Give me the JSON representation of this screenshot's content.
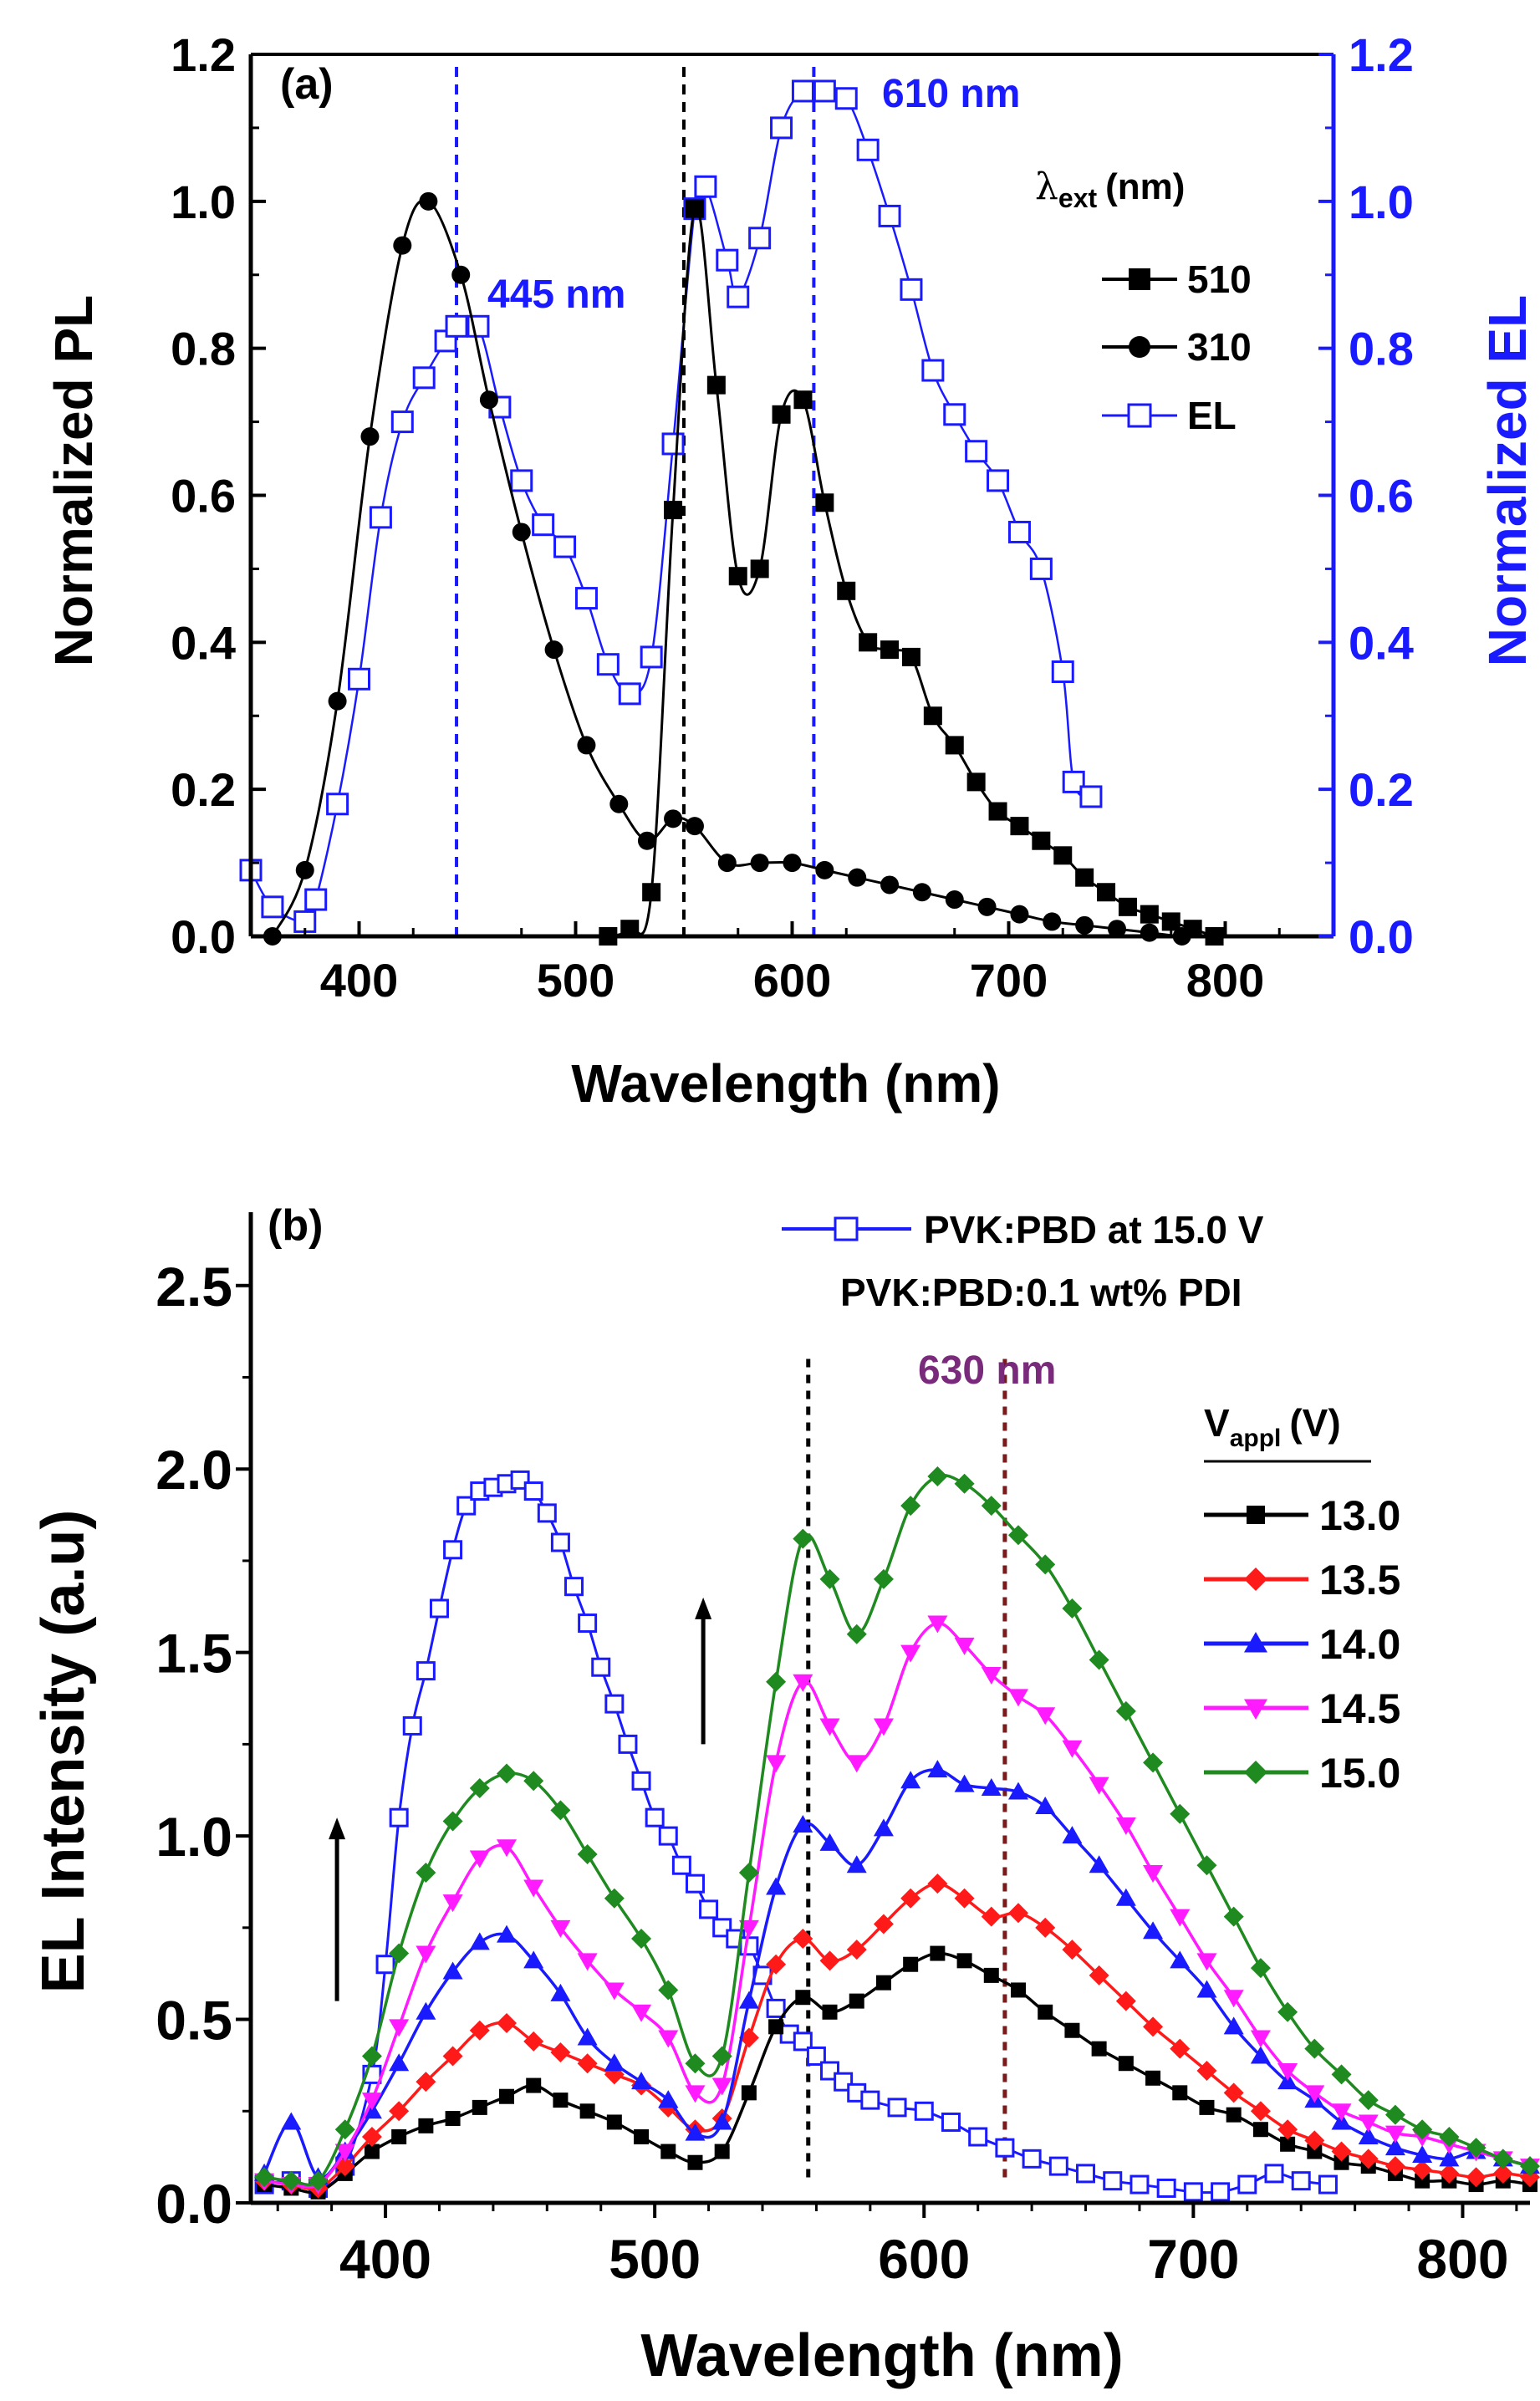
{
  "colors": {
    "black": "#000000",
    "blue": "#1a1aff",
    "maroon": "#7a1a1a",
    "purple": "#7a2a7a"
  },
  "chart_data": [
    {
      "panel_label": "(a)",
      "type": "line",
      "xlabel": "Wavelength (nm)",
      "ylabel_left": "Normalized PL",
      "ylabel_right": "Normalized EL",
      "xlim": [
        350,
        850
      ],
      "ylim": [
        0,
        1.2
      ],
      "x_ticks": [
        400,
        500,
        600,
        700,
        800
      ],
      "x_tick_labels": [
        "400",
        "500",
        "600",
        "700",
        "800"
      ],
      "y_ticks": [
        0,
        0.2,
        0.4,
        0.6,
        0.8,
        1.0,
        1.2
      ],
      "y_tick_labels": [
        "0.0",
        "0.2",
        "0.4",
        "0.6",
        "0.8",
        "1.0",
        "1.2"
      ],
      "y2_tick_labels": [
        "0.0",
        "0.2",
        "0.4",
        "0.6",
        "0.8",
        "1.0",
        "1.2"
      ],
      "legend_title_main": "λ",
      "legend_title_sub": "ext",
      "legend_title_unit": "(nm)",
      "vlines": [
        {
          "x": 445,
          "color": "#1a1aff"
        },
        {
          "x": 550,
          "color": "#000000"
        },
        {
          "x": 610,
          "color": "#1a1aff"
        }
      ],
      "annotations": [
        {
          "text": "445 nm",
          "x": 455,
          "y": 0.89,
          "color": "#1a1aff"
        },
        {
          "text": "610 nm",
          "x": 618,
          "y": 1.17,
          "color": "#1a1aff"
        }
      ],
      "series": [
        {
          "name": "510",
          "marker": "square-filled",
          "color": "#000000",
          "x": [
            515,
            525,
            535,
            545,
            555,
            565,
            575,
            585,
            595,
            605,
            615,
            625,
            635,
            645,
            655,
            665,
            675,
            685,
            695,
            705,
            715,
            725,
            735,
            745,
            755,
            765,
            775,
            785,
            795
          ],
          "y": [
            0.0,
            0.01,
            0.06,
            0.58,
            0.99,
            0.75,
            0.49,
            0.5,
            0.71,
            0.73,
            0.59,
            0.47,
            0.4,
            0.39,
            0.38,
            0.3,
            0.26,
            0.21,
            0.17,
            0.15,
            0.13,
            0.11,
            0.08,
            0.06,
            0.04,
            0.03,
            0.02,
            0.01,
            0.0
          ]
        },
        {
          "name": "310",
          "marker": "circle-filled",
          "color": "#000000",
          "x": [
            360,
            375,
            390,
            405,
            420,
            432,
            447,
            460,
            475,
            490,
            505,
            520,
            533,
            545,
            555,
            570,
            585,
            600,
            615,
            630,
            645,
            660,
            675,
            690,
            705,
            720,
            735,
            750,
            765,
            780,
            795
          ],
          "y": [
            0.0,
            0.09,
            0.32,
            0.68,
            0.94,
            1.0,
            0.9,
            0.73,
            0.55,
            0.39,
            0.26,
            0.18,
            0.13,
            0.16,
            0.15,
            0.1,
            0.1,
            0.1,
            0.09,
            0.08,
            0.07,
            0.06,
            0.05,
            0.04,
            0.03,
            0.02,
            0.015,
            0.01,
            0.005,
            0.0,
            0.0
          ]
        },
        {
          "name": "EL",
          "marker": "square-open",
          "color": "#1a1aff",
          "x": [
            350,
            360,
            375,
            380,
            390,
            400,
            410,
            420,
            430,
            440,
            445,
            455,
            465,
            475,
            485,
            495,
            505,
            515,
            525,
            535,
            545,
            555,
            560,
            570,
            575,
            585,
            595,
            605,
            615,
            625,
            635,
            645,
            655,
            665,
            675,
            685,
            695,
            705,
            715,
            725,
            730,
            738
          ],
          "y": [
            0.09,
            0.04,
            0.02,
            0.05,
            0.18,
            0.35,
            0.57,
            0.7,
            0.76,
            0.81,
            0.83,
            0.83,
            0.72,
            0.62,
            0.56,
            0.53,
            0.46,
            0.37,
            0.33,
            0.38,
            0.67,
            0.99,
            1.02,
            0.92,
            0.87,
            0.95,
            1.1,
            1.15,
            1.15,
            1.14,
            1.07,
            0.98,
            0.88,
            0.77,
            0.71,
            0.66,
            0.62,
            0.55,
            0.5,
            0.36,
            0.21,
            0.19
          ]
        }
      ]
    },
    {
      "panel_label": "(b)",
      "type": "line",
      "xlabel": "Wavelength (nm)",
      "ylabel": "EL Intensity (a.u)",
      "xlim": [
        350,
        825
      ],
      "ylim": [
        0,
        2.7
      ],
      "x_ticks": [
        400,
        500,
        600,
        700,
        800
      ],
      "x_tick_labels": [
        "400",
        "500",
        "600",
        "700",
        "800"
      ],
      "y_ticks": [
        0,
        0.5,
        1.0,
        1.5,
        2.0,
        2.5
      ],
      "y_tick_labels": [
        "0.0",
        "0.5",
        "1.0",
        "1.5",
        "2.0",
        "2.5"
      ],
      "legend_top_label": "PVK:PBD at 15.0 V",
      "legend_subtitle": "PVK:PBD:0.1 wt% PDI",
      "legend_title_main": "V",
      "legend_title_sub": "appl",
      "legend_title_unit": "(V)",
      "vlines": [
        {
          "x": 557,
          "color": "#000000"
        },
        {
          "x": 630,
          "color": "#7a1a1a"
        }
      ],
      "annotations": [
        {
          "text": "630 nm",
          "x": 630,
          "y": 2.22,
          "color": "#7a2a7a"
        }
      ],
      "arrows": [
        {
          "x": 382,
          "y_from": 0.55,
          "y_to": 1.05
        },
        {
          "x": 518,
          "y_from": 1.25,
          "y_to": 1.65
        }
      ],
      "reference_series": {
        "name": "PVK:PBD at 15.0 V",
        "marker": "square-open",
        "color": "#1a1aff",
        "x": [
          355,
          365,
          375,
          385,
          395,
          400,
          405,
          410,
          415,
          420,
          425,
          430,
          435,
          440,
          445,
          450,
          455,
          460,
          465,
          470,
          475,
          480,
          485,
          490,
          495,
          500,
          505,
          510,
          515,
          520,
          525,
          530,
          535,
          540,
          545,
          550,
          555,
          560,
          565,
          570,
          575,
          580,
          590,
          600,
          610,
          620,
          630,
          640,
          650,
          660,
          670,
          680,
          690,
          700,
          710,
          720,
          730,
          740,
          750
        ],
        "y": [
          0.05,
          0.06,
          0.04,
          0.1,
          0.35,
          0.65,
          1.05,
          1.3,
          1.45,
          1.62,
          1.78,
          1.9,
          1.94,
          1.95,
          1.96,
          1.97,
          1.94,
          1.88,
          1.8,
          1.68,
          1.58,
          1.46,
          1.36,
          1.25,
          1.15,
          1.05,
          1.0,
          0.92,
          0.87,
          0.8,
          0.75,
          0.72,
          0.7,
          0.62,
          0.53,
          0.46,
          0.44,
          0.4,
          0.36,
          0.33,
          0.3,
          0.28,
          0.26,
          0.25,
          0.22,
          0.18,
          0.15,
          0.12,
          0.1,
          0.08,
          0.06,
          0.05,
          0.04,
          0.03,
          0.03,
          0.05,
          0.08,
          0.06,
          0.05
        ]
      },
      "series": [
        {
          "name": "13.0",
          "marker": "square-filled",
          "color": "#000000",
          "x": [
            355,
            365,
            375,
            385,
            395,
            405,
            415,
            425,
            435,
            445,
            455,
            465,
            475,
            485,
            495,
            505,
            515,
            525,
            535,
            545,
            555,
            565,
            575,
            585,
            595,
            605,
            615,
            625,
            635,
            645,
            655,
            665,
            675,
            685,
            695,
            705,
            715,
            725,
            735,
            745,
            755,
            765,
            775,
            785,
            795,
            805,
            815,
            825
          ],
          "y": [
            0.05,
            0.04,
            0.03,
            0.08,
            0.14,
            0.18,
            0.21,
            0.23,
            0.26,
            0.29,
            0.32,
            0.28,
            0.25,
            0.22,
            0.18,
            0.14,
            0.11,
            0.14,
            0.3,
            0.48,
            0.56,
            0.52,
            0.55,
            0.6,
            0.65,
            0.68,
            0.66,
            0.62,
            0.58,
            0.52,
            0.47,
            0.42,
            0.38,
            0.34,
            0.3,
            0.26,
            0.24,
            0.2,
            0.16,
            0.14,
            0.11,
            0.1,
            0.08,
            0.06,
            0.06,
            0.05,
            0.06,
            0.05
          ]
        },
        {
          "name": "13.5",
          "marker": "diamond-filled",
          "color": "#ff1a1a",
          "x": [
            355,
            365,
            375,
            385,
            395,
            405,
            415,
            425,
            435,
            445,
            455,
            465,
            475,
            485,
            495,
            505,
            515,
            525,
            535,
            545,
            555,
            565,
            575,
            585,
            595,
            605,
            615,
            625,
            635,
            645,
            655,
            665,
            675,
            685,
            695,
            705,
            715,
            725,
            735,
            745,
            755,
            765,
            775,
            785,
            795,
            805,
            815,
            825
          ],
          "y": [
            0.06,
            0.05,
            0.04,
            0.1,
            0.18,
            0.25,
            0.33,
            0.4,
            0.47,
            0.49,
            0.44,
            0.41,
            0.38,
            0.35,
            0.32,
            0.26,
            0.2,
            0.23,
            0.45,
            0.65,
            0.72,
            0.66,
            0.69,
            0.76,
            0.83,
            0.87,
            0.83,
            0.78,
            0.79,
            0.75,
            0.69,
            0.62,
            0.55,
            0.48,
            0.42,
            0.36,
            0.3,
            0.25,
            0.2,
            0.17,
            0.14,
            0.12,
            0.1,
            0.09,
            0.08,
            0.07,
            0.08,
            0.07
          ]
        },
        {
          "name": "14.0",
          "marker": "triangle-up-filled",
          "color": "#1a1aff",
          "x": [
            355,
            365,
            375,
            385,
            395,
            405,
            415,
            425,
            435,
            445,
            455,
            465,
            475,
            485,
            495,
            505,
            515,
            525,
            535,
            545,
            555,
            565,
            575,
            585,
            595,
            605,
            615,
            625,
            635,
            645,
            655,
            665,
            675,
            685,
            695,
            705,
            715,
            725,
            735,
            745,
            755,
            765,
            775,
            785,
            795,
            805,
            815,
            825
          ],
          "y": [
            0.08,
            0.22,
            0.07,
            0.14,
            0.25,
            0.38,
            0.52,
            0.63,
            0.71,
            0.73,
            0.66,
            0.57,
            0.45,
            0.38,
            0.33,
            0.28,
            0.19,
            0.22,
            0.55,
            0.86,
            1.03,
            0.98,
            0.92,
            1.02,
            1.15,
            1.18,
            1.14,
            1.13,
            1.12,
            1.08,
            1.0,
            0.92,
            0.83,
            0.74,
            0.66,
            0.58,
            0.48,
            0.4,
            0.33,
            0.28,
            0.22,
            0.18,
            0.15,
            0.13,
            0.12,
            0.14,
            0.12,
            0.1
          ]
        },
        {
          "name": "14.5",
          "marker": "triangle-down-filled",
          "color": "#ff1aff",
          "x": [
            355,
            365,
            375,
            385,
            395,
            405,
            415,
            425,
            435,
            445,
            455,
            465,
            475,
            485,
            495,
            505,
            515,
            525,
            535,
            545,
            555,
            565,
            575,
            585,
            595,
            605,
            615,
            625,
            635,
            645,
            655,
            665,
            675,
            685,
            695,
            705,
            715,
            725,
            735,
            745,
            755,
            765,
            775,
            785,
            795,
            805,
            815,
            825
          ],
          "y": [
            0.06,
            0.05,
            0.05,
            0.14,
            0.28,
            0.48,
            0.68,
            0.82,
            0.94,
            0.97,
            0.86,
            0.75,
            0.66,
            0.58,
            0.52,
            0.45,
            0.3,
            0.32,
            0.75,
            1.2,
            1.42,
            1.3,
            1.2,
            1.3,
            1.5,
            1.58,
            1.52,
            1.44,
            1.38,
            1.33,
            1.24,
            1.14,
            1.03,
            0.9,
            0.78,
            0.66,
            0.56,
            0.45,
            0.36,
            0.3,
            0.25,
            0.22,
            0.19,
            0.18,
            0.16,
            0.14,
            0.12,
            0.1
          ]
        },
        {
          "name": "15.0",
          "marker": "diamond-filled",
          "color": "#1f8a1f",
          "x": [
            355,
            365,
            375,
            385,
            395,
            405,
            415,
            425,
            435,
            445,
            455,
            465,
            475,
            485,
            495,
            505,
            515,
            525,
            535,
            545,
            555,
            565,
            575,
            585,
            595,
            605,
            615,
            625,
            635,
            645,
            655,
            665,
            675,
            685,
            695,
            705,
            715,
            725,
            735,
            745,
            755,
            765,
            775,
            785,
            795,
            805,
            815,
            825
          ],
          "y": [
            0.07,
            0.06,
            0.06,
            0.2,
            0.4,
            0.68,
            0.9,
            1.04,
            1.13,
            1.17,
            1.15,
            1.07,
            0.95,
            0.83,
            0.72,
            0.58,
            0.38,
            0.4,
            0.9,
            1.42,
            1.81,
            1.7,
            1.55,
            1.7,
            1.9,
            1.98,
            1.96,
            1.9,
            1.82,
            1.74,
            1.62,
            1.48,
            1.34,
            1.2,
            1.06,
            0.92,
            0.78,
            0.64,
            0.52,
            0.42,
            0.35,
            0.28,
            0.24,
            0.2,
            0.18,
            0.15,
            0.12,
            0.1
          ]
        }
      ]
    }
  ]
}
